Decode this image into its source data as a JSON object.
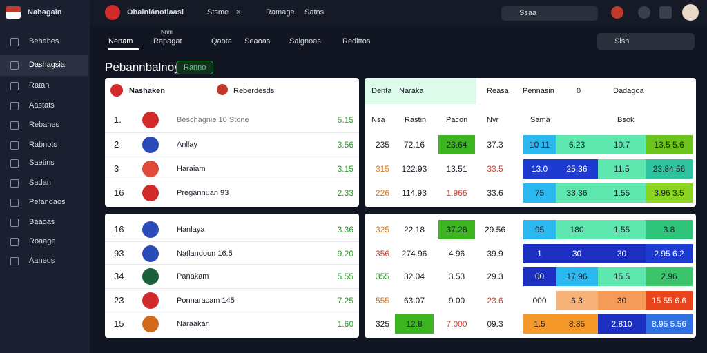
{
  "brand": "Nahagain",
  "sidebar": {
    "items": [
      "Behahes",
      "Dashagsia",
      "Ratan",
      "Aastats",
      "Rebahes",
      "Rabnots",
      "Saetins",
      "Sadan",
      "Pefandaos",
      "Baaoas",
      "Roaage",
      "Aaneus"
    ],
    "active": 1
  },
  "header": {
    "app": "Obalnlánotlaasi",
    "tabs": [
      "Stsme",
      "×",
      "Ramage",
      "Satns"
    ],
    "search": "Ssaa"
  },
  "subnav": {
    "items": [
      "Nenam",
      "Rapagat",
      "Qaota",
      "Seaoas",
      "Saignoas",
      "Redlttos"
    ],
    "note": "Nnm",
    "search": "Sish"
  },
  "page": {
    "title": "Pebannbalnoy",
    "badge": "Ranno"
  },
  "left": {
    "header": [
      "Nashaken",
      "Reberdesds"
    ],
    "rows": [
      [
        "1.",
        "Beschagnie  10 Stone",
        "5.15"
      ],
      [
        "2",
        "Anllay",
        "3.56"
      ],
      [
        "3",
        "Haraiam",
        "3.15"
      ],
      [
        "16",
        "Pregannuan  93",
        "2.33"
      ],
      [
        "16",
        "Hanlaya",
        "3.36"
      ],
      [
        "93",
        "Natlandoon  16.5",
        "9.20"
      ],
      [
        "34",
        "Panakam",
        "5.55"
      ],
      [
        "23",
        "Ponnaracam  145",
        "7.25"
      ],
      [
        "15",
        "Naraakan",
        "1.60"
      ]
    ]
  },
  "right": {
    "header": [
      "Denta",
      "Naraka",
      "Reasa",
      "Pennasin",
      "0",
      "Dadagoa"
    ],
    "columns": [
      "Nsa",
      "Rastin",
      "Pacon",
      "Nvr",
      "Sama",
      "Bsok"
    ],
    "rows": [
      [
        {
          "text": "235"
        },
        {
          "text": "72.16"
        },
        {
          "text": "23.64",
          "bg": "#3cb521"
        },
        {
          "text": "37.3"
        },
        {
          "text": "10 11",
          "bg": "#2bb8f0"
        },
        {
          "text": "6.23",
          "bg": "#5ee8b0"
        },
        {
          "text": "10.7",
          "bg": "#5ee8b0"
        },
        {
          "text": "13.5 5.6",
          "bg": "#6cc31c"
        }
      ],
      [
        {
          "text": "315",
          "color": "#e07a10"
        },
        {
          "text": "122.93"
        },
        {
          "text": "13.51"
        },
        {
          "text": "33.5",
          "color": "#d23b2a"
        },
        {
          "text": "13.0",
          "bg": "#1d3bd1"
        },
        {
          "text": "25.36",
          "bg": "#1d3bd1"
        },
        {
          "text": "11.5",
          "bg": "#5ee8b0"
        },
        {
          "text": "23.84 56",
          "bg": "#2ec4a0"
        }
      ],
      [
        {
          "text": "226",
          "color": "#e07a10"
        },
        {
          "text": "114.93"
        },
        {
          "text": "1.966",
          "color": "#d23b2a"
        },
        {
          "text": "33.6"
        },
        {
          "text": "75",
          "bg": "#2bb8f0"
        },
        {
          "text": "33.36",
          "bg": "#5ee8b0"
        },
        {
          "text": "1.55",
          "bg": "#5ee8b0"
        },
        {
          "text": "3.96 3.5",
          "bg": "#8bd421"
        }
      ],
      [
        {
          "text": "325",
          "color": "#e07a10"
        },
        {
          "text": "22.18"
        },
        {
          "text": "37.28",
          "bg": "#3cb521"
        },
        {
          "text": "29.56"
        },
        {
          "text": "95",
          "bg": "#2bb8f0"
        },
        {
          "text": "180",
          "bg": "#5ee8b0"
        },
        {
          "text": "1.55",
          "bg": "#5ee8b0"
        },
        {
          "text": "3.8",
          "bg": "#2ec47a"
        }
      ],
      [
        {
          "text": "356",
          "color": "#d23b2a"
        },
        {
          "text": "274.96"
        },
        {
          "text": "4.96"
        },
        {
          "text": "39.9"
        },
        {
          "text": "1",
          "bg": "#1d2fc0"
        },
        {
          "text": "30",
          "bg": "#1d2fc0"
        },
        {
          "text": "30",
          "bg": "#1d2fc0"
        },
        {
          "text": "2.95 6.2",
          "bg": "#1d3bd1"
        }
      ],
      [
        {
          "text": "355",
          "color": "#2a9a2a"
        },
        {
          "text": "32.04"
        },
        {
          "text": "3.53"
        },
        {
          "text": "29.3"
        },
        {
          "text": "00",
          "bg": "#1d2fc0"
        },
        {
          "text": "17.96",
          "bg": "#2bb8f0"
        },
        {
          "text": "15.5",
          "bg": "#5ee8b0"
        },
        {
          "text": "2.96",
          "bg": "#3cc46a"
        }
      ],
      [
        {
          "text": "555",
          "color": "#e07a10"
        },
        {
          "text": "63.07"
        },
        {
          "text": "9.00"
        },
        {
          "text": "23.6",
          "color": "#d23b2a"
        },
        {
          "text": "000"
        },
        {
          "text": "6.3",
          "bg": "#f7b27a"
        },
        {
          "text": "30",
          "bg": "#f59b5a"
        },
        {
          "text": "15 55 6.6",
          "bg": "#e8451e"
        }
      ],
      [
        {
          "text": "325"
        },
        {
          "text": "12.8",
          "bg": "#3cb521"
        },
        {
          "text": "7.000",
          "color": "#d23b2a"
        },
        {
          "text": "09.3"
        },
        {
          "text": "1.5",
          "bg": "#f59a2a"
        },
        {
          "text": "8.85",
          "bg": "#f59a2a"
        },
        {
          "text": "2.810",
          "bg": "#1d2fc0"
        },
        {
          "text": "8.95 5.56",
          "bg": "#2f6fe0"
        }
      ]
    ]
  }
}
